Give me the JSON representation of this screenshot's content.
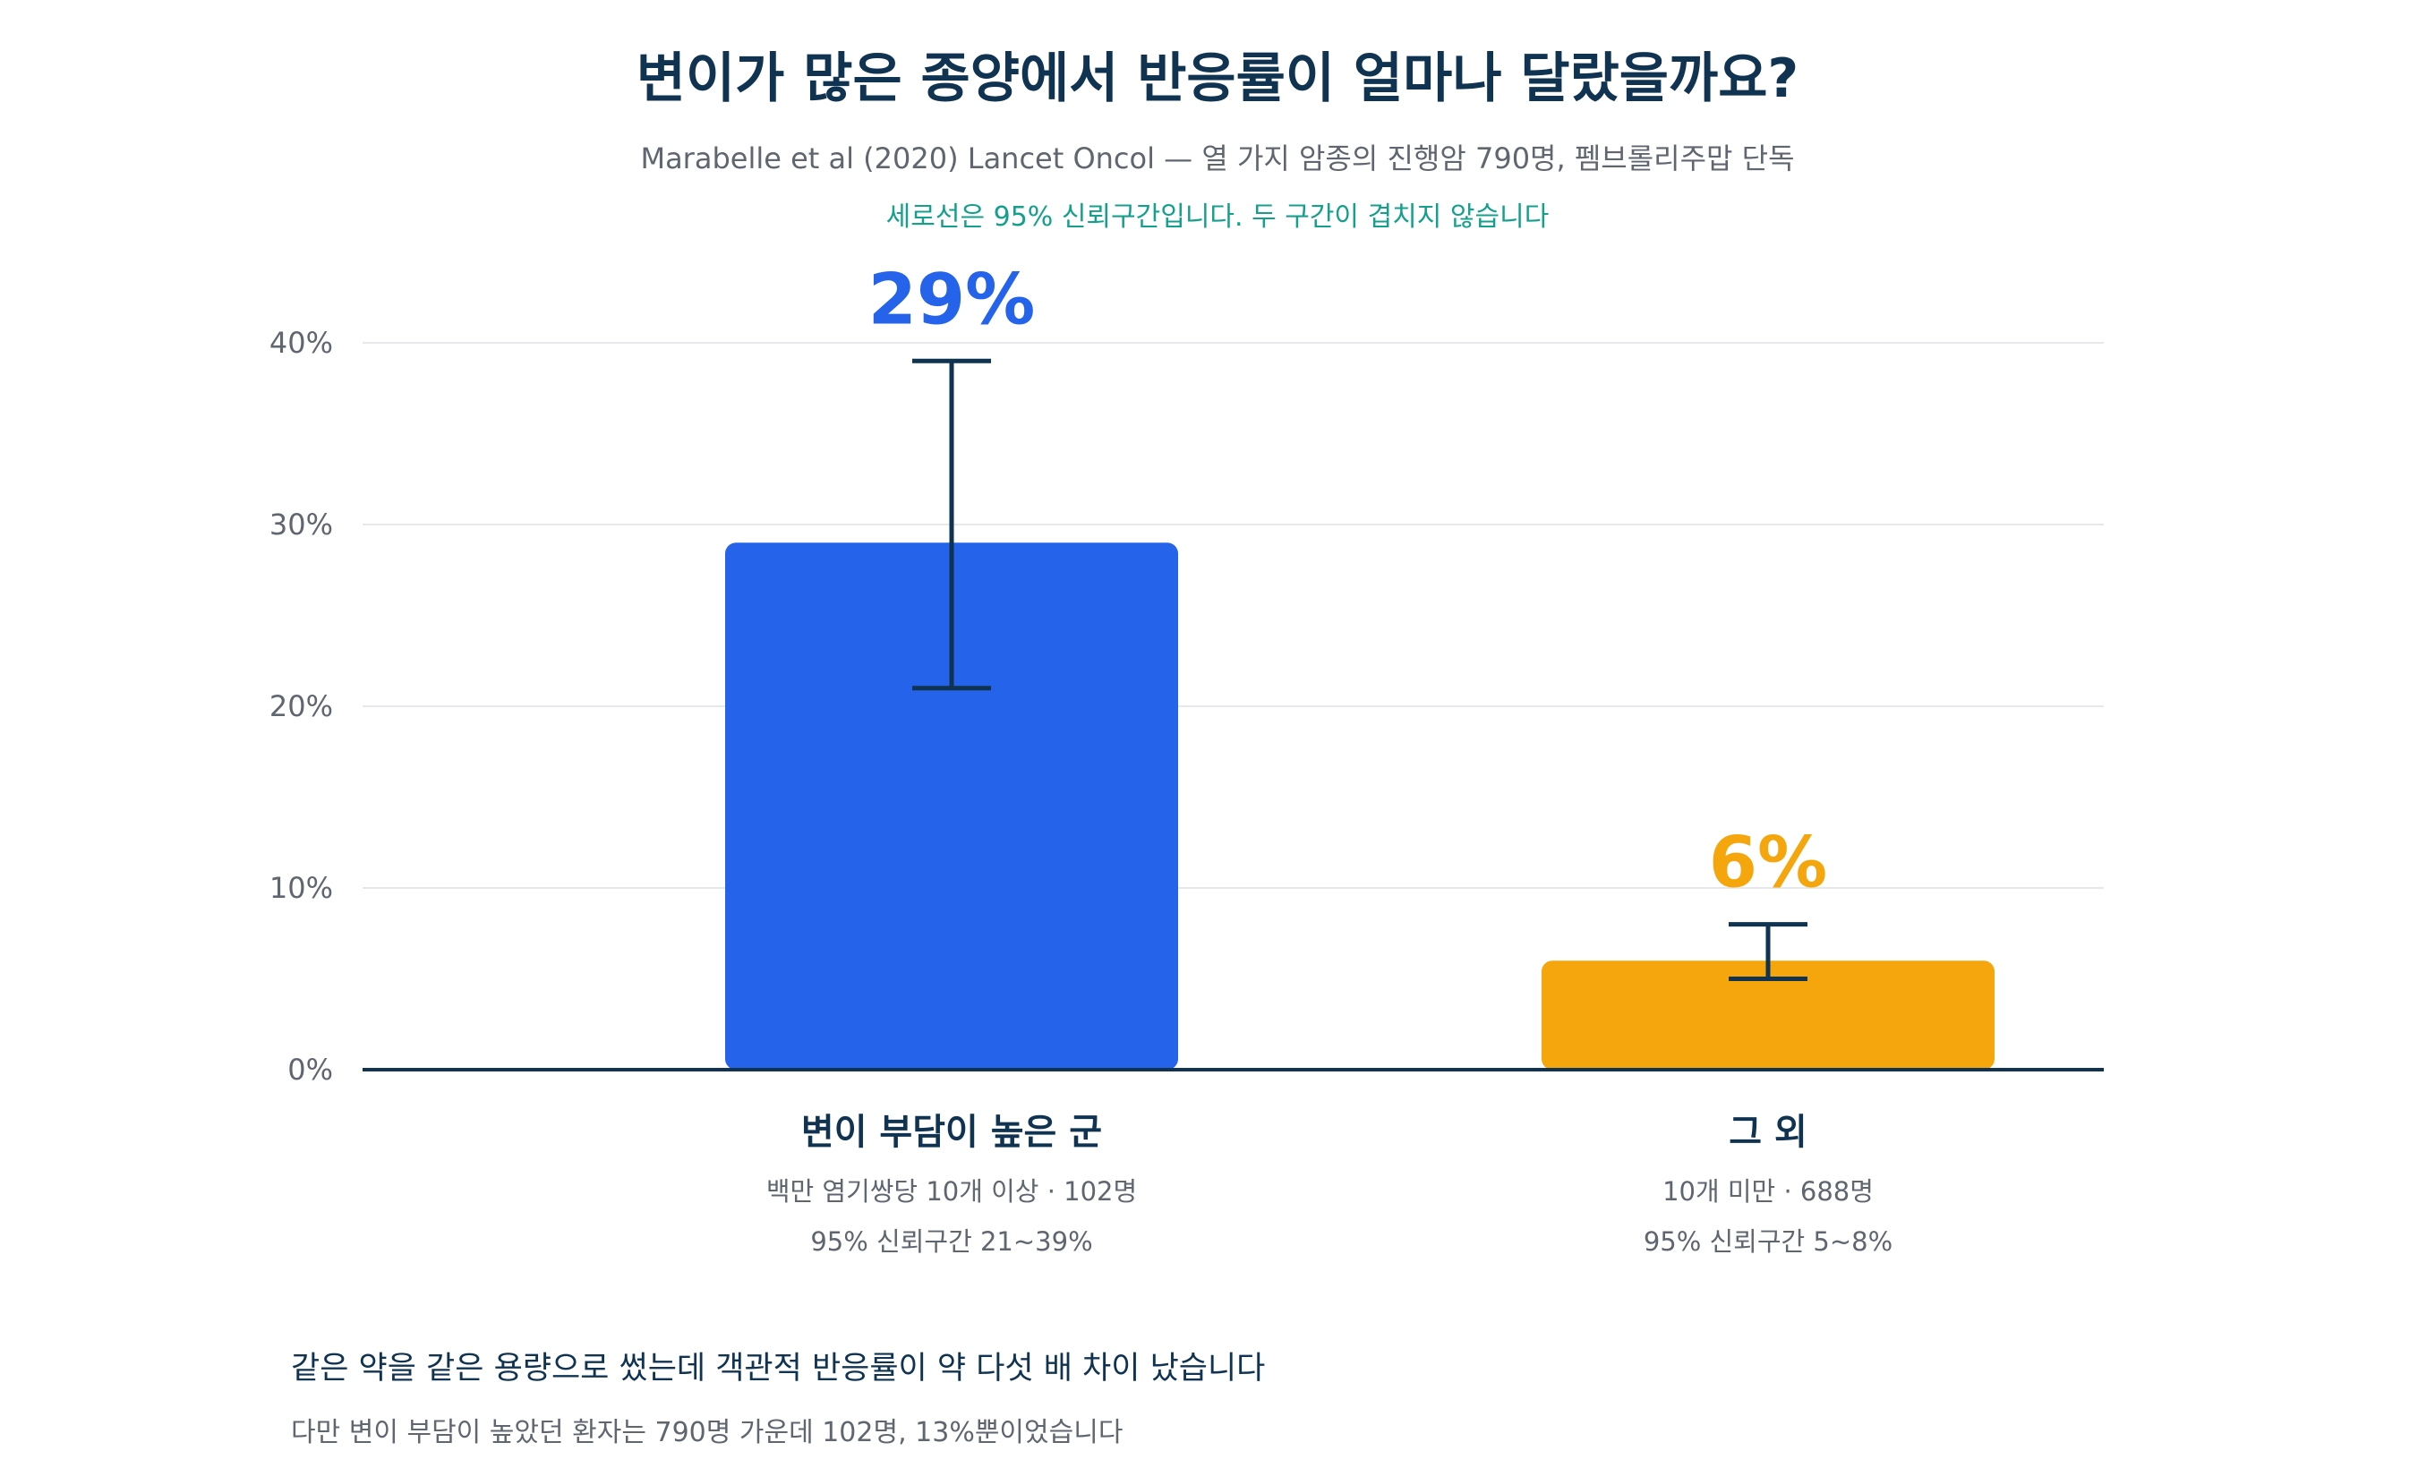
{
  "header": {
    "title": "변이가 많은 종양에서 반응률이 얼마나 달랐을까요?",
    "subtitle": "Marabelle et al (2020) Lancet Oncol — 열 가지 암종의 진행암 790명, 펨브롤리주맙 단독",
    "note": "세로선은 95% 신뢰구간입니다. 두 구간이 겹치지 않습니다"
  },
  "chart_data": {
    "type": "bar",
    "categories": [
      "변이 부담이 높은 군",
      "그 외"
    ],
    "category_details": [
      [
        "백만 염기쌍당 10개 이상 · 102명",
        "95% 신뢰구간 21~39%"
      ],
      [
        "10개 미만 · 688명",
        "95% 신뢰구간 5~8%"
      ]
    ],
    "values": [
      29,
      6
    ],
    "value_labels": [
      "29%",
      "6%"
    ],
    "ci_lower": [
      21,
      5
    ],
    "ci_upper": [
      39,
      8
    ],
    "colors": [
      "#2563eb",
      "#f5a60c"
    ],
    "yticks": [
      0,
      10,
      20,
      30,
      40
    ],
    "ytick_labels": [
      "0%",
      "10%",
      "20%",
      "30%",
      "40%"
    ],
    "ylim": [
      0,
      40
    ],
    "grid": true,
    "legend": "none"
  },
  "footer": {
    "main": "같은 약을 같은 용량으로 썼는데 객관적 반응률이 약 다섯 배 차이 났습니다",
    "sub": "다만 변이 부담이 높았던 환자는 790명 가운데 102명, 13%뿐이었습니다"
  },
  "colors": {
    "title": "#0f3350",
    "note": "#14a08c",
    "axis": "#0f3350",
    "grid": "#e6e8eb",
    "errorbar": "#0f3350",
    "muted": "#5f6670"
  }
}
